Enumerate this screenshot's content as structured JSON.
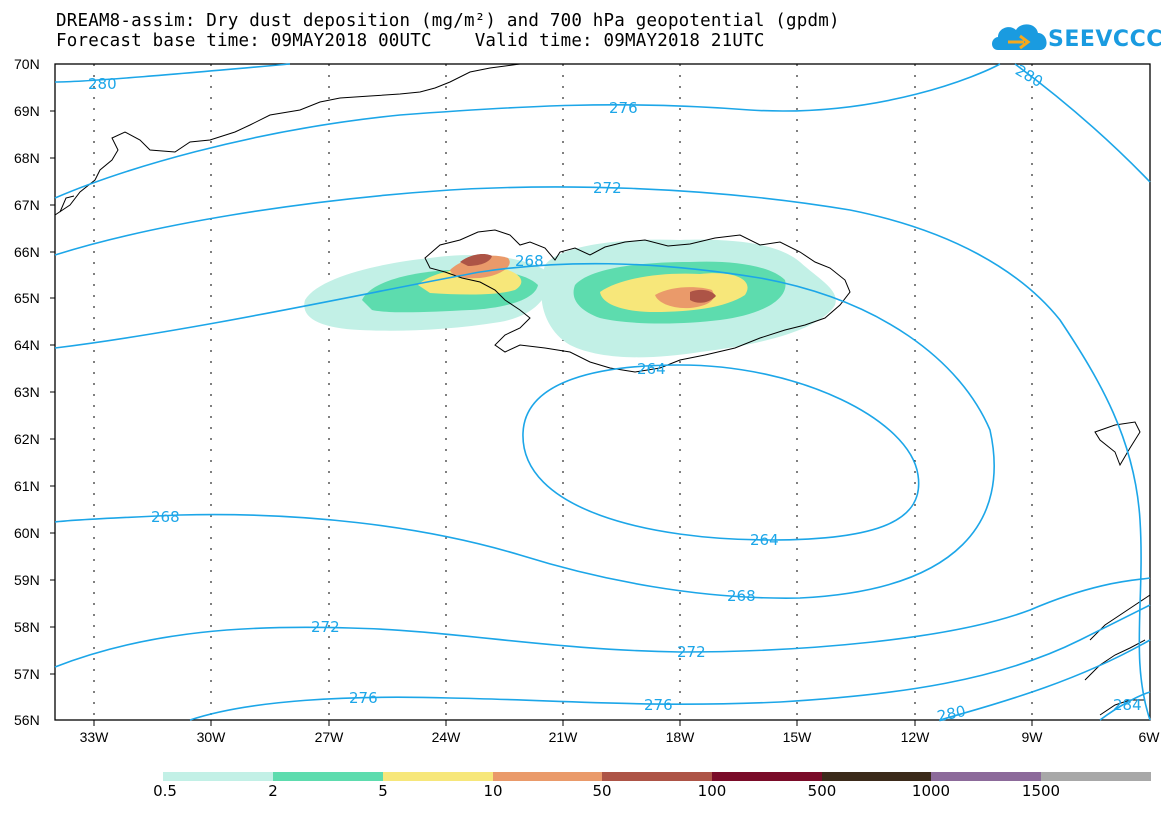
{
  "header": {
    "title_line1": "DREAM8-assim: Dry dust deposition (mg/m²) and 700 hPa geopotential (gpdm)",
    "title_line2": "Forecast base time: 09MAY2018 00UTC    Valid time: 09MAY2018 21UTC",
    "logo_text": "SEEVCCC"
  },
  "map": {
    "lat_labels": [
      "70N",
      "69N",
      "68N",
      "67N",
      "66N",
      "65N",
      "64N",
      "63N",
      "62N",
      "61N",
      "60N",
      "59N",
      "58N",
      "57N",
      "56N"
    ],
    "lon_labels": [
      "33W",
      "30W",
      "27W",
      "24W",
      "21W",
      "18W",
      "15W",
      "12W",
      "9W",
      "6W"
    ],
    "contour_labels": [
      "280",
      "276",
      "272",
      "268",
      "264",
      "264",
      "268",
      "272",
      "276",
      "268",
      "272",
      "276",
      "280",
      "280",
      "284"
    ],
    "colors": {
      "contour": "#1ca6e8",
      "coast": "#000000"
    }
  },
  "legend": {
    "labels": [
      "0.5",
      "2",
      "5",
      "10",
      "50",
      "100",
      "500",
      "1000",
      "1500"
    ],
    "colors": [
      "#c2f0e6",
      "#5ddcae",
      "#f7e77a",
      "#ea9a6a",
      "#ad5446",
      "#7a0b28",
      "#3b2a1a",
      "#8c6a9a",
      "#a8a8a8"
    ]
  }
}
